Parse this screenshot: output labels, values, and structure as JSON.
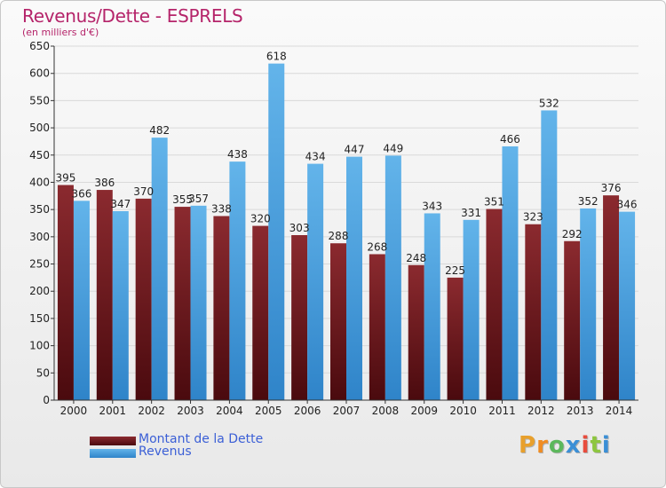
{
  "header": {
    "title": "Revenus/Dette - ESPRELS",
    "subtitle": "(en milliers d'€)"
  },
  "colors": {
    "debt_top": "#8b2a2f",
    "debt_bottom": "#4a0a0e",
    "revenue_top": "#63b4ea",
    "revenue_bottom": "#2f84c9",
    "accent": "#b5246a",
    "legend_text": "#3b5fd6"
  },
  "legend": {
    "items": [
      {
        "label": "Montant de la Dette"
      },
      {
        "label": "Revenus"
      }
    ]
  },
  "logo": {
    "text": "Proxiti",
    "letter_colors": [
      "#e8a02c",
      "#f08c22",
      "#5cb85c",
      "#3b8fd6",
      "#e84c3d",
      "#8dc63f",
      "#3b8fd6"
    ]
  },
  "chart_data": {
    "type": "bar",
    "title": "Revenus/Dette - ESPRELS",
    "ylabel": "",
    "xlabel": "",
    "categories": [
      "2000",
      "2001",
      "2002",
      "2003",
      "2004",
      "2005",
      "2006",
      "2007",
      "2008",
      "2009",
      "2010",
      "2011",
      "2012",
      "2013",
      "2014"
    ],
    "series": [
      {
        "name": "Montant de la Dette",
        "values": [
          395,
          386,
          370,
          355,
          338,
          320,
          303,
          288,
          268,
          248,
          225,
          351,
          323,
          292,
          376
        ]
      },
      {
        "name": "Revenus",
        "values": [
          366,
          347,
          482,
          357,
          438,
          618,
          434,
          447,
          449,
          343,
          331,
          466,
          532,
          352,
          346
        ]
      }
    ],
    "value_labels": {
      "Montant de la Dette": [
        "395",
        "386",
        "370",
        "355",
        "338",
        "320",
        "303",
        "288",
        "268",
        "248",
        "225",
        "351",
        "323",
        "292",
        "376"
      ],
      "Revenus": [
        "366",
        "347",
        "482",
        "357",
        "438",
        "618",
        "434",
        "447",
        "449",
        "343",
        "331",
        "466",
        "532",
        "352",
        "346"
      ]
    },
    "ylim": [
      0,
      650
    ],
    "yticks": [
      0,
      50,
      100,
      150,
      200,
      250,
      300,
      350,
      400,
      450,
      500,
      550,
      600,
      650
    ],
    "grid": true,
    "legend_position": "bottom-left"
  }
}
